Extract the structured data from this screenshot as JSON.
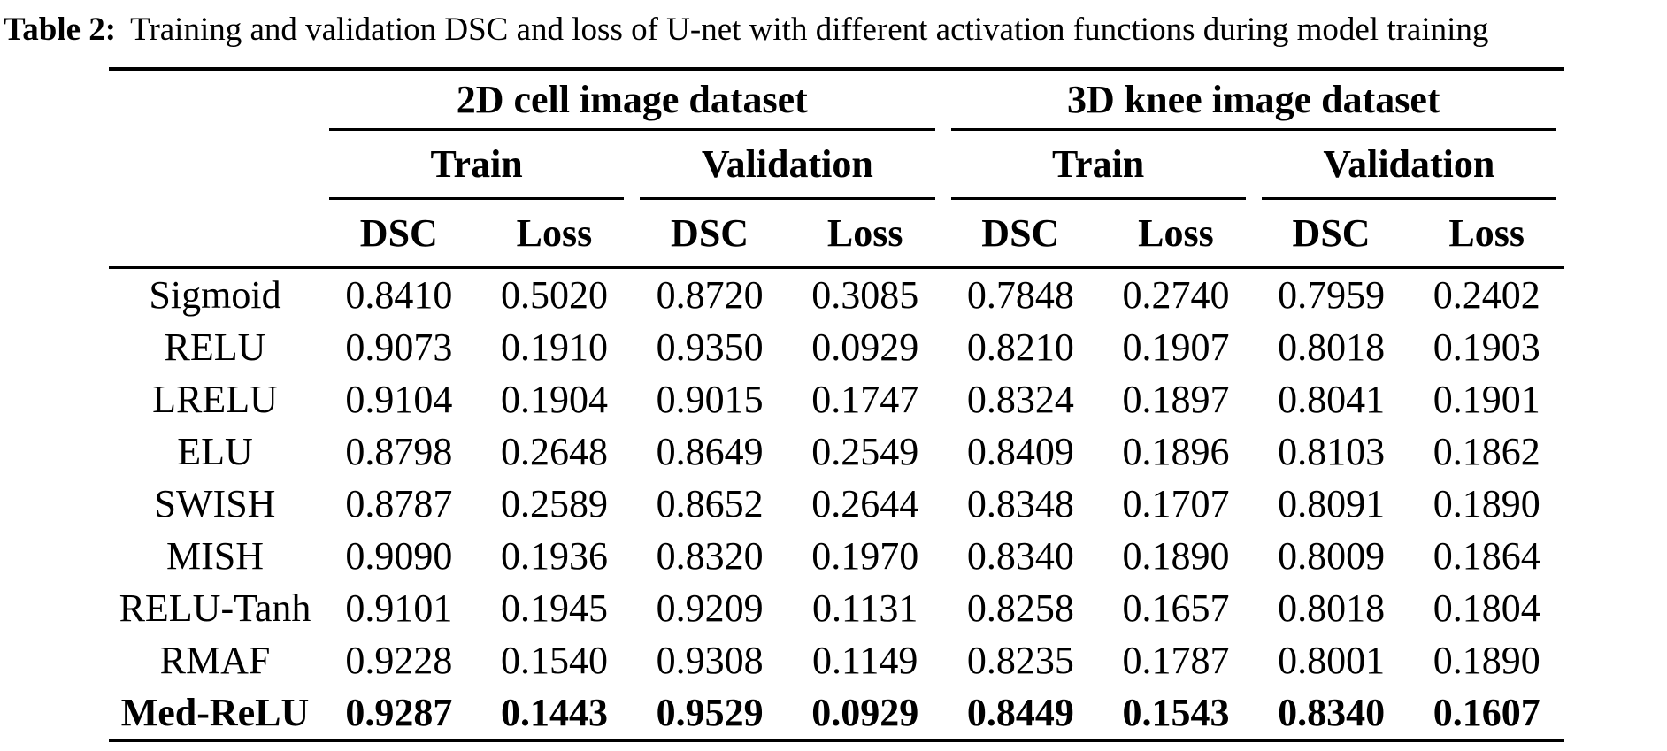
{
  "caption": {
    "label": "Table 2:",
    "text": "Training and validation DSC and loss of U-net with different activation functions during model training"
  },
  "table": {
    "group_headers": [
      "2D cell image dataset",
      "3D knee image dataset"
    ],
    "phase_headers": [
      "Train",
      "Validation",
      "Train",
      "Validation"
    ],
    "metric_headers": [
      "DSC",
      "Loss",
      "DSC",
      "Loss",
      "DSC",
      "Loss",
      "DSC",
      "Loss"
    ],
    "rows": [
      {
        "label": "Sigmoid",
        "values": [
          "0.8410",
          "0.5020",
          "0.8720",
          "0.3085",
          "0.7848",
          "0.2740",
          "0.7959",
          "0.2402"
        ]
      },
      {
        "label": "RELU",
        "values": [
          "0.9073",
          "0.1910",
          "0.9350",
          "0.0929",
          "0.8210",
          "0.1907",
          "0.8018",
          "0.1903"
        ]
      },
      {
        "label": "LRELU",
        "values": [
          "0.9104",
          "0.1904",
          "0.9015",
          "0.1747",
          "0.8324",
          "0.1897",
          "0.8041",
          "0.1901"
        ]
      },
      {
        "label": "ELU",
        "values": [
          "0.8798",
          "0.2648",
          "0.8649",
          "0.2549",
          "0.8409",
          "0.1896",
          "0.8103",
          "0.1862"
        ]
      },
      {
        "label": "SWISH",
        "values": [
          "0.8787",
          "0.2589",
          "0.8652",
          "0.2644",
          "0.8348",
          "0.1707",
          "0.8091",
          "0.1890"
        ]
      },
      {
        "label": "MISH",
        "values": [
          "0.9090",
          "0.1936",
          "0.8320",
          "0.1970",
          "0.8340",
          "0.1890",
          "0.8009",
          "0.1864"
        ]
      },
      {
        "label": "RELU-Tanh",
        "values": [
          "0.9101",
          "0.1945",
          "0.9209",
          "0.1131",
          "0.8258",
          "0.1657",
          "0.8018",
          "0.1804"
        ]
      },
      {
        "label": "RMAF",
        "values": [
          "0.9228",
          "0.1540",
          "0.9308",
          "0.1149",
          "0.8235",
          "0.1787",
          "0.8001",
          "0.1890"
        ]
      },
      {
        "label": "Med-ReLU",
        "values": [
          "0.9287",
          "0.1443",
          "0.9529",
          "0.0929",
          "0.8449",
          "0.1543",
          "0.8340",
          "0.1607"
        ],
        "bold": true
      }
    ]
  }
}
